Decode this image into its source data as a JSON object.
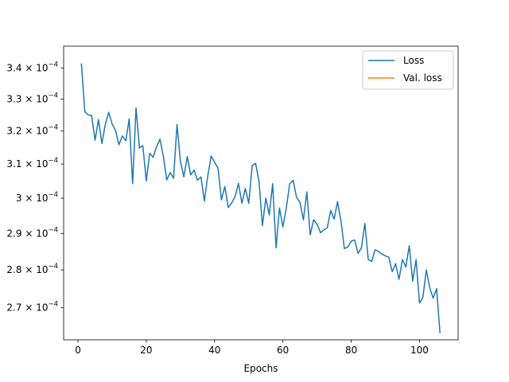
{
  "chart_data": {
    "type": "line",
    "title": "",
    "xlabel": "Epochs",
    "ylabel": "",
    "yscale": "log",
    "xlim": [
      -4.2,
      111.3
    ],
    "ylim": [
      0.0002618,
      0.0003472
    ],
    "x_ticks": [
      0,
      20,
      40,
      60,
      80,
      100
    ],
    "x_tick_labels": [
      "0",
      "20",
      "40",
      "60",
      "80",
      "100"
    ],
    "y_ticks": [
      0.00027,
      0.00028,
      0.00029,
      0.0003,
      0.00031,
      0.00032,
      0.00033,
      0.00034
    ],
    "y_tick_labels": [
      {
        "mant": "2.7 × 10",
        "exp": "−4"
      },
      {
        "mant": "2.8 × 10",
        "exp": "−4"
      },
      {
        "mant": "2.9 × 10",
        "exp": "−4"
      },
      {
        "mant": "3 × 10",
        "exp": "−4"
      },
      {
        "mant": "3.1 × 10",
        "exp": "−4"
      },
      {
        "mant": "3.2 × 10",
        "exp": "−4"
      },
      {
        "mant": "3.3 × 10",
        "exp": "−4"
      },
      {
        "mant": "3.4 × 10",
        "exp": "−4"
      }
    ],
    "grid": false,
    "legend": {
      "position": "top-right",
      "entries": [
        {
          "name": "Loss",
          "color": "#1f77b4"
        },
        {
          "name": "Val. loss",
          "color": "#ff7f0e"
        }
      ]
    },
    "series": [
      {
        "name": "Loss",
        "color": "#1f77b4",
        "x": [
          1,
          2,
          3,
          4,
          5,
          6,
          7,
          8,
          9,
          10,
          11,
          12,
          13,
          14,
          15,
          16,
          17,
          18,
          19,
          20,
          21,
          22,
          23,
          24,
          25,
          26,
          27,
          28,
          29,
          30,
          31,
          32,
          33,
          34,
          35,
          36,
          37,
          38,
          39,
          40,
          41,
          42,
          43,
          44,
          45,
          46,
          47,
          48,
          49,
          50,
          51,
          52,
          53,
          54,
          55,
          56,
          57,
          58,
          59,
          60,
          61,
          62,
          63,
          64,
          65,
          66,
          67,
          68,
          69,
          70,
          71,
          72,
          73,
          74,
          75,
          76,
          77,
          78,
          79,
          80,
          81,
          82,
          83,
          84,
          85,
          86,
          87,
          88,
          89,
          90,
          91,
          92,
          93,
          94,
          95,
          96,
          97,
          98,
          99,
          100,
          101,
          102,
          103,
          104,
          105,
          106
        ],
        "values": [
          0.0003415,
          0.000326,
          0.000325,
          0.0003248,
          0.0003172,
          0.0003235,
          0.0003162,
          0.000322,
          0.0003258,
          0.0003222,
          0.0003202,
          0.0003158,
          0.0003185,
          0.000317,
          0.0003238,
          0.0003042,
          0.0003272,
          0.0003148,
          0.0003155,
          0.000305,
          0.0003132,
          0.000312,
          0.0003152,
          0.0003175,
          0.0003123,
          0.0003053,
          0.0003075,
          0.0003058,
          0.000322,
          0.0003108,
          0.0003062,
          0.0003122,
          0.0003068,
          0.0003082,
          0.0003052,
          0.0003062,
          0.0002992,
          0.0003065,
          0.0003124,
          0.0003105,
          0.0003088,
          0.0002995,
          0.0003034,
          0.0002973,
          0.0002986,
          0.0003005,
          0.0003043,
          0.0002985,
          0.0003028,
          0.0002985,
          0.0003095,
          0.0003102,
          0.000305,
          0.0002922,
          0.0003,
          0.0002952,
          0.0003042,
          0.000286,
          0.0002972,
          0.0002918,
          0.0002972,
          0.0003042,
          0.0003052,
          0.0003002,
          0.0002988,
          0.0002938,
          0.0003018,
          0.0002896,
          0.0002938,
          0.0002926,
          0.0002902,
          0.000291,
          0.0002916,
          0.0002965,
          0.000294,
          0.000299,
          0.0002935,
          0.0002858,
          0.0002862,
          0.0002878,
          0.0002882,
          0.0002845,
          0.000286,
          0.0002928,
          0.0002828,
          0.0002823,
          0.0002855,
          0.000285,
          0.0002843,
          0.0002838,
          0.0002835,
          0.0002795,
          0.0002817,
          0.0002775,
          0.0002828,
          0.0002808,
          0.0002866,
          0.000277,
          0.0002828,
          0.0002712,
          0.0002728,
          0.00028,
          0.0002752,
          0.0002725,
          0.000275,
          0.0002635
        ]
      },
      {
        "name": "Val. loss",
        "color": "#ff7f0e",
        "x": [],
        "values": []
      }
    ]
  }
}
